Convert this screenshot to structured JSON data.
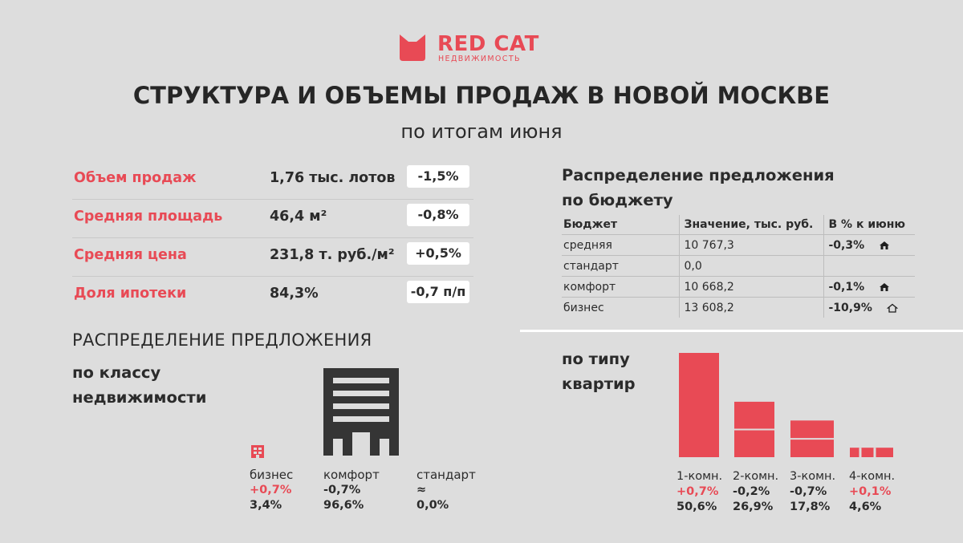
{
  "brand": {
    "name": "RED CAT",
    "tagline": "НЕДВИЖИМОСТЬ",
    "color": "#e84a55"
  },
  "title": "СТРУКТУРА И ОБЪЕМЫ ПРОДАЖ В НОВОЙ МОСКВЕ",
  "subtitle": "по итогам июня",
  "kpis": [
    {
      "label": "Объем продаж",
      "value": "1,76 тыс. лотов",
      "change": "-1,5%"
    },
    {
      "label": "Средняя площадь",
      "value": "46,4 м²",
      "change": "-0,8%"
    },
    {
      "label": "Средняя цена",
      "value": "231,8 т. руб./м²",
      "change": "+0,5%"
    },
    {
      "label": "Доля ипотеки",
      "value": "84,3%",
      "change": "-0,7 п/п"
    }
  ],
  "budget": {
    "title_line1": "Распределение предложения",
    "title_line2": "по бюджету",
    "headers": [
      "Бюджет",
      "Значение, тыс. руб.",
      "В % к июню"
    ],
    "rows": [
      {
        "segment": "средняя",
        "value": "10 767,3",
        "change": "-0,3%",
        "icon": "house-icon"
      },
      {
        "segment": "стандарт",
        "value": "0,0",
        "change": "",
        "icon": ""
      },
      {
        "segment": "комфорт",
        "value": "10 668,2",
        "change": "-0,1%",
        "icon": "house-icon"
      },
      {
        "segment": "бизнес",
        "value": "13 608,2",
        "change": "-10,9%",
        "icon": "house-outline-icon"
      }
    ]
  },
  "class_section": {
    "heading": "РАСПРЕДЕЛЕНИЕ ПРЕДЛОЖЕНИЯ",
    "sub_line1": "по классу",
    "sub_line2": "недвижимости",
    "items": [
      {
        "label": "бизнес",
        "change": "+0,7%",
        "share": "3,4%",
        "share_value": 3.4,
        "positive": true
      },
      {
        "label": "комфорт",
        "change": "-0,7%",
        "share": "96,6%",
        "share_value": 96.6,
        "positive": false
      },
      {
        "label": "стандарт",
        "change": "≈",
        "share": "0,0%",
        "share_value": 0.0,
        "positive": false
      }
    ]
  },
  "apartment_section": {
    "title_line1": "по типу",
    "title_line2": "квартир"
  },
  "chart_data": {
    "type": "bar",
    "title": "по типу квартир",
    "categories": [
      "1-комн.",
      "2-комн.",
      "3-комн.",
      "4-комн."
    ],
    "values": [
      50.6,
      26.9,
      17.8,
      4.6
    ],
    "value_labels": [
      "50,6%",
      "26,9%",
      "17,8%",
      "4,6%"
    ],
    "changes": [
      "+0,7%",
      "-0,2%",
      "-0,7%",
      "+0,1%"
    ],
    "positive": [
      true,
      false,
      false,
      true
    ],
    "unit": "%",
    "ylim": [
      0,
      50.6
    ],
    "bar_color": "#e84a55"
  },
  "colors": {
    "accent": "#e84a55",
    "background": "#dddddd",
    "text": "#2b2b2b"
  }
}
